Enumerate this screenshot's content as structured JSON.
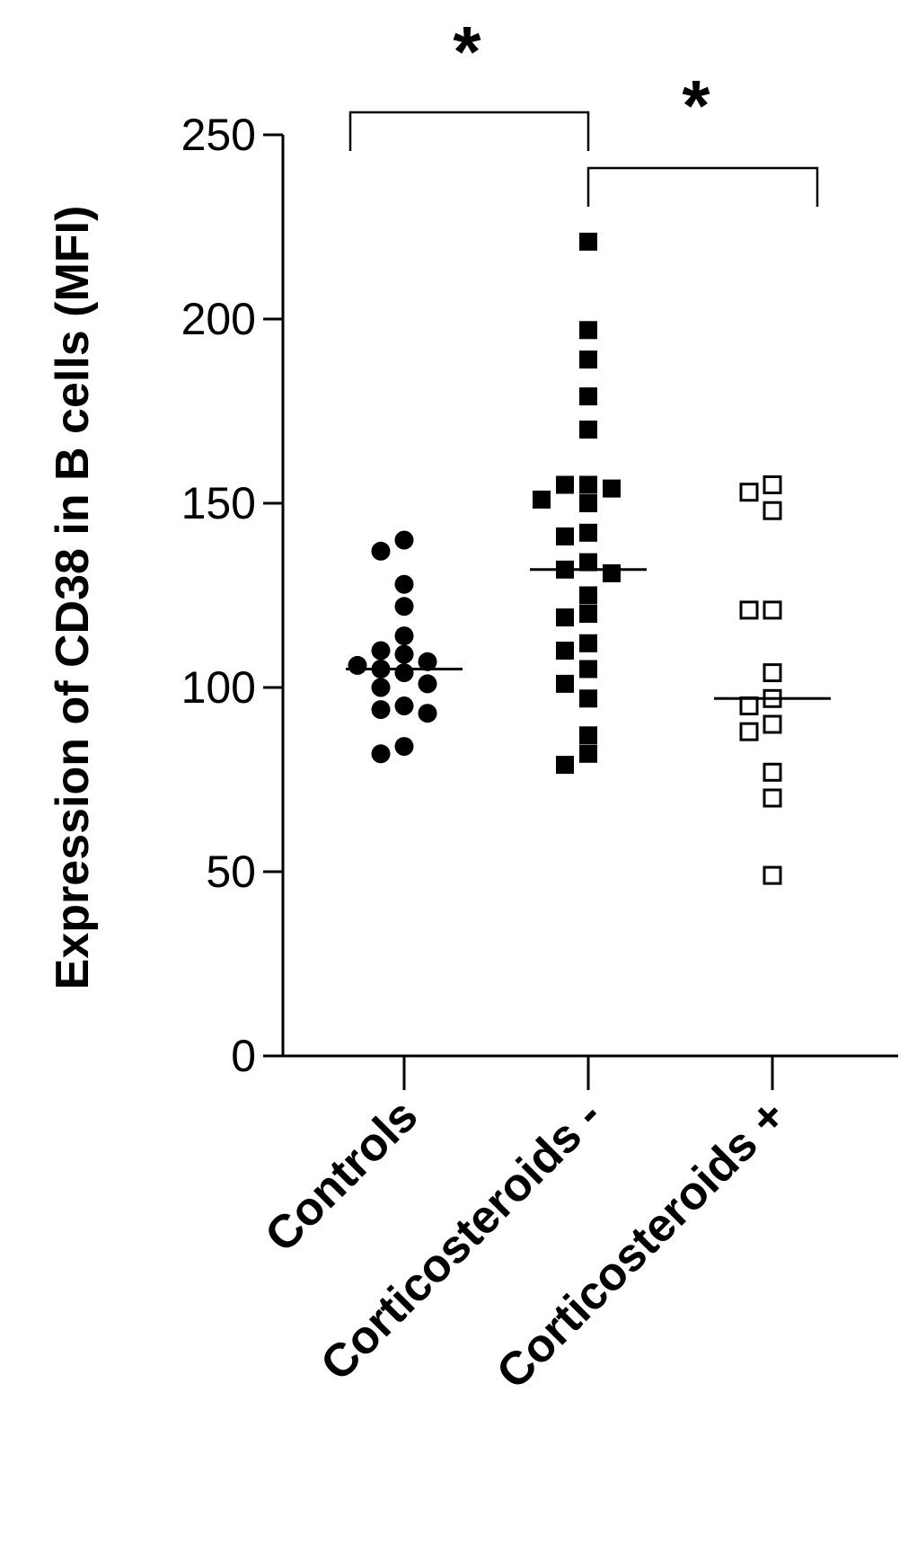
{
  "chart_data": {
    "type": "scatter",
    "title": "",
    "xlabel": "",
    "ylabel": "Expression of CD38 in B cells (MFI)",
    "ylim": [
      0,
      250
    ],
    "yticks": [
      0,
      50,
      100,
      150,
      200,
      250
    ],
    "categories": [
      "Controls",
      "Corticosteroids -",
      "Corticosteroids +"
    ],
    "series": [
      {
        "category": "Controls",
        "marker": "filled-circle",
        "median": 105,
        "values": [
          140,
          137,
          128,
          122,
          114,
          110,
          109,
          107,
          106,
          105,
          104,
          101,
          100,
          95,
          94,
          93,
          84,
          82
        ]
      },
      {
        "category": "Corticosteroids -",
        "marker": "filled-square",
        "median": 132,
        "values": [
          221,
          197,
          189,
          179,
          170,
          155,
          155,
          154,
          151,
          150,
          142,
          141,
          134,
          132,
          131,
          125,
          120,
          119,
          112,
          110,
          105,
          101,
          97,
          87,
          82,
          79
        ]
      },
      {
        "category": "Corticosteroids +",
        "marker": "open-square",
        "median": 97,
        "values": [
          155,
          153,
          148,
          121,
          121,
          104,
          97,
          95,
          90,
          88,
          77,
          70,
          49
        ]
      }
    ],
    "significance": [
      {
        "from": "Controls",
        "to": "Corticosteroids -",
        "label": "*"
      },
      {
        "from": "Corticosteroids -",
        "to": "Corticosteroids +",
        "label": "*"
      }
    ]
  }
}
